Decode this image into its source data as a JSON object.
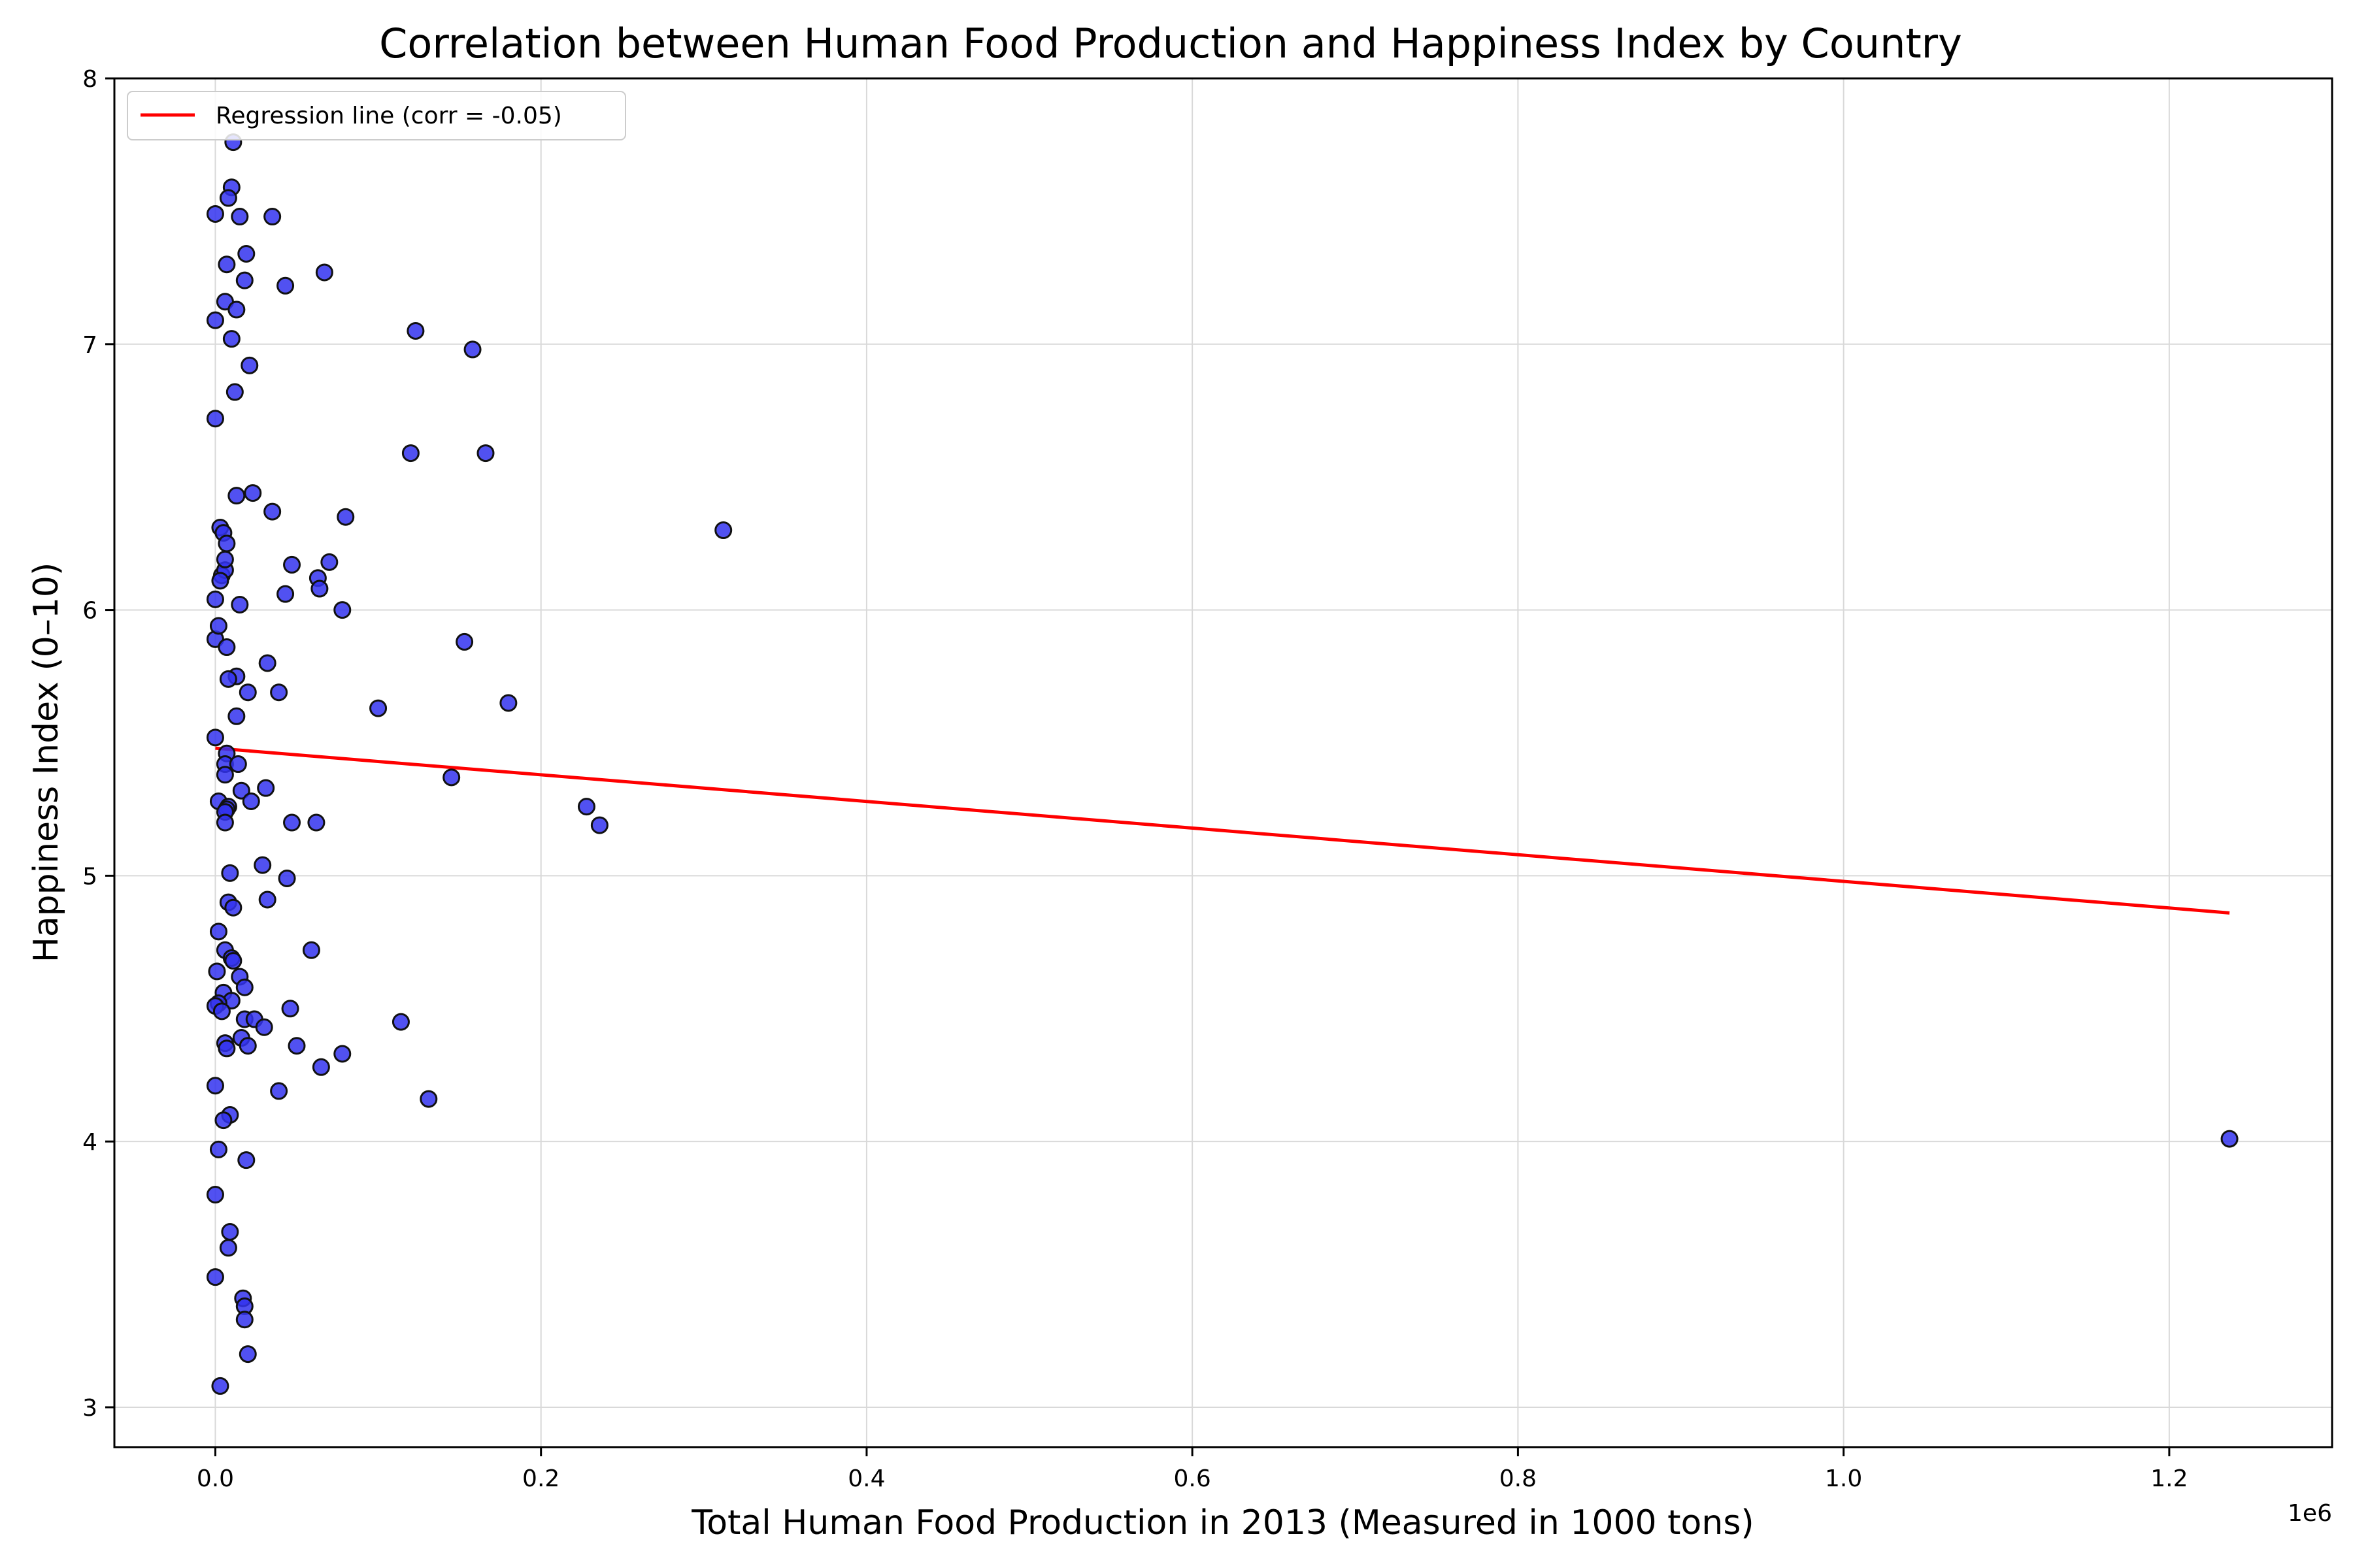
{
  "chart_data": {
    "type": "scatter",
    "title": "Correlation between Human Food Production and Happiness Index by Country",
    "xlabel": "Total Human Food Production in 2013 (Measured in 1000 tons)",
    "ylabel": "Happiness Index (0–10)",
    "x_offset_label": "1e6",
    "xlim": [
      -62000,
      1300000
    ],
    "ylim": [
      2.85,
      8.0
    ],
    "x_ticks": [
      0,
      200000,
      400000,
      600000,
      800000,
      1000000,
      1200000
    ],
    "x_tick_labels": [
      "0.0",
      "0.2",
      "0.4",
      "0.6",
      "0.8",
      "1.0",
      "1.2"
    ],
    "y_ticks": [
      3,
      4,
      5,
      6,
      7,
      8
    ],
    "y_tick_labels": [
      "3",
      "4",
      "5",
      "6",
      "7",
      "8"
    ],
    "grid": true,
    "legend_position": "top-left",
    "colors": {
      "points": "#3333ee",
      "point_edge": "#111111",
      "regression": "#ff0000"
    },
    "series": [
      {
        "kind": "points",
        "x": [
          11000,
          10000,
          8000,
          0,
          15000,
          35000,
          19000,
          7000,
          67000,
          18000,
          43000,
          6000,
          13000,
          0,
          10000,
          123000,
          158000,
          21000,
          12000,
          0,
          120000,
          166000,
          13000,
          23000,
          35000,
          80000,
          3000,
          5000,
          7000,
          47000,
          70000,
          4000,
          6000,
          63000,
          64000,
          43000,
          0,
          6000,
          15000,
          78000,
          3000,
          0,
          2000,
          153000,
          7000,
          32000,
          13000,
          8000,
          20000,
          39000,
          13000,
          100000,
          180000,
          0,
          7000,
          6000,
          14000,
          6000,
          145000,
          31000,
          16000,
          2000,
          22000,
          8000,
          7000,
          6000,
          6000,
          228000,
          236000,
          47000,
          62000,
          29000,
          9000,
          44000,
          32000,
          8000,
          11000,
          2000,
          6000,
          10000,
          11000,
          59000,
          1000,
          15000,
          18000,
          5000,
          10000,
          2000,
          0,
          4000,
          46000,
          18000,
          24000,
          30000,
          114000,
          16000,
          6000,
          20000,
          7000,
          50000,
          78000,
          65000,
          0,
          39000,
          131000,
          9000,
          5000,
          2000,
          19000,
          0,
          9000,
          8000,
          0,
          17000,
          18000,
          18000,
          20000,
          3000,
          312000,
          1237000
        ],
        "y": [
          7.76,
          7.59,
          7.55,
          7.49,
          7.48,
          7.48,
          7.34,
          7.3,
          7.27,
          7.24,
          7.22,
          7.16,
          7.13,
          7.09,
          7.02,
          7.05,
          6.98,
          6.92,
          6.82,
          6.72,
          6.59,
          6.59,
          6.43,
          6.44,
          6.37,
          6.35,
          6.31,
          6.29,
          6.25,
          6.17,
          6.18,
          6.13,
          6.15,
          6.12,
          6.08,
          6.06,
          6.04,
          6.19,
          6.02,
          6.0,
          6.11,
          5.89,
          5.94,
          5.88,
          5.86,
          5.8,
          5.75,
          5.74,
          5.69,
          5.69,
          5.6,
          5.63,
          5.65,
          5.52,
          5.46,
          5.42,
          5.42,
          5.38,
          5.37,
          5.33,
          5.32,
          5.28,
          5.28,
          5.26,
          5.25,
          5.24,
          5.2,
          5.26,
          5.19,
          5.2,
          5.2,
          5.04,
          5.01,
          4.99,
          4.91,
          4.9,
          4.88,
          4.79,
          4.72,
          4.69,
          4.68,
          4.72,
          4.64,
          4.62,
          4.58,
          4.56,
          4.53,
          4.52,
          4.51,
          4.49,
          4.5,
          4.46,
          4.46,
          4.43,
          4.45,
          4.39,
          4.37,
          4.36,
          4.35,
          4.36,
          4.33,
          4.28,
          4.21,
          4.19,
          4.16,
          4.1,
          4.08,
          3.97,
          3.93,
          3.8,
          3.66,
          3.6,
          3.49,
          3.41,
          3.38,
          3.33,
          3.2,
          3.08,
          6.3,
          4.01
        ]
      },
      {
        "kind": "line",
        "name": "Regression line (corr = -0.05)",
        "x": [
          0,
          1237000
        ],
        "y": [
          5.48,
          4.86
        ]
      }
    ]
  }
}
